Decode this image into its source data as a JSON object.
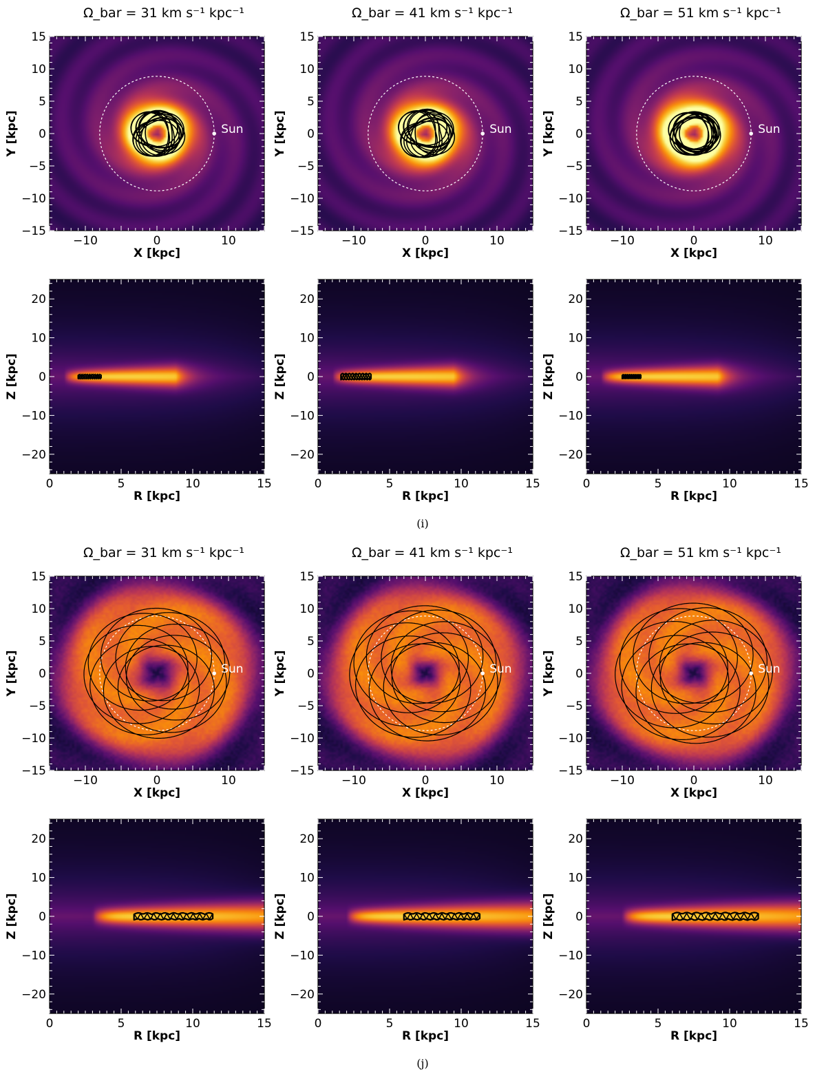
{
  "figure_labels": [
    "(i)",
    "(j)"
  ],
  "colors": {
    "background": "#ffffff",
    "orbit": "#000000",
    "sun_marker": "#ffffff",
    "colormap": "inferno"
  },
  "chart_data": [
    {
      "type": "heatmap",
      "group": "(i)",
      "view": "xy",
      "title": "Ω_bar = 31 km s⁻¹ kpc⁻¹",
      "xlabel": "X [kpc]",
      "ylabel": "Y [kpc]",
      "xlim": [
        -15,
        15
      ],
      "ylim": [
        -15,
        15
      ],
      "xticks": [
        -10,
        0,
        10
      ],
      "yticks": [
        -15,
        -10,
        -5,
        0,
        5,
        10,
        15
      ],
      "sun": {
        "x": 8,
        "y": 0,
        "label": "Sun"
      },
      "solar_circle_radius": 8,
      "density": {
        "kind": "ring",
        "peak_radius": 3.0,
        "width": 1.4,
        "outer_scale": 4.5
      },
      "orbit": {
        "rmin": 2.0,
        "rmax": 3.6,
        "loops": 12
      }
    },
    {
      "type": "heatmap",
      "group": "(i)",
      "view": "xy",
      "title": "Ω_bar = 41 km s⁻¹ kpc⁻¹",
      "xlabel": "X [kpc]",
      "ylabel": "Y [kpc]",
      "xlim": [
        -15,
        15
      ],
      "ylim": [
        -15,
        15
      ],
      "xticks": [
        -10,
        0,
        10
      ],
      "yticks": [
        -15,
        -10,
        -5,
        0,
        5,
        10,
        15
      ],
      "sun": {
        "x": 8,
        "y": 0,
        "label": "Sun"
      },
      "solar_circle_radius": 8,
      "density": {
        "kind": "ring",
        "peak_radius": 3.0,
        "width": 1.5,
        "outer_scale": 4.6
      },
      "orbit": {
        "rmin": 1.8,
        "rmax": 3.8,
        "loops": 12
      }
    },
    {
      "type": "heatmap",
      "group": "(i)",
      "view": "xy",
      "title": "Ω_bar = 51 km s⁻¹ kpc⁻¹",
      "xlabel": "X [kpc]",
      "ylabel": "Y [kpc]",
      "xlim": [
        -15,
        15
      ],
      "ylim": [
        -15,
        15
      ],
      "xticks": [
        -10,
        0,
        10
      ],
      "yticks": [
        -15,
        -10,
        -5,
        0,
        5,
        10,
        15
      ],
      "sun": {
        "x": 8,
        "y": 0,
        "label": "Sun"
      },
      "solar_circle_radius": 8,
      "density": {
        "kind": "ring",
        "peak_radius": 3.2,
        "width": 1.6,
        "outer_scale": 4.6
      },
      "orbit": {
        "rmin": 2.4,
        "rmax": 3.4,
        "loops": 12
      }
    },
    {
      "type": "heatmap",
      "group": "(i)",
      "view": "rz",
      "xlabel": "R [kpc]",
      "ylabel": "Z [kpc]",
      "xlim": [
        0,
        15
      ],
      "ylim": [
        -25,
        25
      ],
      "xticks": [
        0,
        5,
        10,
        15
      ],
      "yticks": [
        -20,
        -10,
        0,
        10,
        20
      ],
      "density": {
        "kind": "disk",
        "r_start": 1.0,
        "r_end": 8.8
      },
      "orbit": {
        "rmin": 2.0,
        "rmax": 3.6,
        "zmax": 0.5
      }
    },
    {
      "type": "heatmap",
      "group": "(i)",
      "view": "rz",
      "xlabel": "R [kpc]",
      "ylabel": "Z [kpc]",
      "xlim": [
        0,
        15
      ],
      "ylim": [
        -25,
        25
      ],
      "xticks": [
        0,
        5,
        10,
        15
      ],
      "yticks": [
        -20,
        -10,
        0,
        10,
        20
      ],
      "density": {
        "kind": "disk",
        "r_start": 1.0,
        "r_end": 9.5
      },
      "orbit": {
        "rmin": 1.6,
        "rmax": 3.7,
        "zmax": 0.8
      }
    },
    {
      "type": "heatmap",
      "group": "(i)",
      "view": "rz",
      "xlabel": "R [kpc]",
      "ylabel": "Z [kpc]",
      "xlim": [
        0,
        15
      ],
      "ylim": [
        -25,
        25
      ],
      "xticks": [
        0,
        5,
        10,
        15
      ],
      "yticks": [
        -20,
        -10,
        0,
        10,
        20
      ],
      "density": {
        "kind": "disk",
        "r_start": 1.0,
        "r_end": 9.2
      },
      "orbit": {
        "rmin": 2.5,
        "rmax": 3.8,
        "zmax": 0.5
      }
    },
    {
      "type": "heatmap",
      "group": "(j)",
      "view": "xy",
      "title": "Ω_bar = 31 km s⁻¹ kpc⁻¹",
      "xlabel": "X [kpc]",
      "ylabel": "Y [kpc]",
      "xlim": [
        -15,
        15
      ],
      "ylim": [
        -15,
        15
      ],
      "xticks": [
        -10,
        0,
        10
      ],
      "yticks": [
        -15,
        -10,
        -5,
        0,
        5,
        10,
        15
      ],
      "sun": {
        "x": 8,
        "y": 0,
        "label": "Sun"
      },
      "solar_circle_radius": 8,
      "density": {
        "kind": "wide",
        "hole_radius": 2.6,
        "outer_radius": 13.5
      },
      "orbit": {
        "center_offset": 3.0,
        "radius": 7.2,
        "loops": 9
      }
    },
    {
      "type": "heatmap",
      "group": "(j)",
      "view": "xy",
      "title": "Ω_bar = 41 km s⁻¹ kpc⁻¹",
      "xlabel": "X [kpc]",
      "ylabel": "Y [kpc]",
      "xlim": [
        -15,
        15
      ],
      "ylim": [
        -15,
        15
      ],
      "xticks": [
        -10,
        0,
        10
      ],
      "yticks": [
        -15,
        -10,
        -5,
        0,
        5,
        10,
        15
      ],
      "sun": {
        "x": 8,
        "y": 0,
        "label": "Sun"
      },
      "solar_circle_radius": 8,
      "density": {
        "kind": "wide",
        "hole_radius": 2.0,
        "outer_radius": 13.5
      },
      "orbit": {
        "center_offset": 3.0,
        "radius": 7.6,
        "loops": 9
      }
    },
    {
      "type": "heatmap",
      "group": "(j)",
      "view": "xy",
      "title": "Ω_bar = 51 km s⁻¹ kpc⁻¹",
      "xlabel": "X [kpc]",
      "ylabel": "Y [kpc]",
      "xlim": [
        -15,
        15
      ],
      "ylim": [
        -15,
        15
      ],
      "xticks": [
        -10,
        0,
        10
      ],
      "yticks": [
        -15,
        -10,
        -5,
        0,
        5,
        10,
        15
      ],
      "sun": {
        "x": 8,
        "y": 0,
        "label": "Sun"
      },
      "solar_circle_radius": 8,
      "density": {
        "kind": "wide",
        "hole_radius": 2.2,
        "outer_radius": 13.5
      },
      "orbit": {
        "center_offset": 3.2,
        "radius": 7.8,
        "loops": 9
      }
    },
    {
      "type": "heatmap",
      "group": "(j)",
      "view": "rz",
      "xlabel": "R [kpc]",
      "ylabel": "Z [kpc]",
      "xlim": [
        0,
        15
      ],
      "ylim": [
        -25,
        25
      ],
      "xticks": [
        0,
        5,
        10,
        15
      ],
      "yticks": [
        -20,
        -10,
        0,
        10,
        20
      ],
      "density": {
        "kind": "disk",
        "r_start": 3.0,
        "r_end": 15
      },
      "orbit": {
        "rmin": 5.9,
        "rmax": 11.4,
        "zmax": 0.9
      }
    },
    {
      "type": "heatmap",
      "group": "(j)",
      "view": "rz",
      "xlabel": "R [kpc]",
      "ylabel": "Z [kpc]",
      "xlim": [
        0,
        15
      ],
      "ylim": [
        -25,
        25
      ],
      "xticks": [
        0,
        5,
        10,
        15
      ],
      "yticks": [
        -20,
        -10,
        0,
        10,
        20
      ],
      "density": {
        "kind": "disk",
        "r_start": 2.0,
        "r_end": 15
      },
      "orbit": {
        "rmin": 6.0,
        "rmax": 11.3,
        "zmax": 0.9
      }
    },
    {
      "type": "heatmap",
      "group": "(j)",
      "view": "rz",
      "xlabel": "R [kpc]",
      "ylabel": "Z [kpc]",
      "xlim": [
        0,
        15
      ],
      "ylim": [
        -25,
        25
      ],
      "xticks": [
        0,
        5,
        10,
        15
      ],
      "yticks": [
        -20,
        -10,
        0,
        10,
        20
      ],
      "density": {
        "kind": "disk",
        "r_start": 2.5,
        "r_end": 15
      },
      "orbit": {
        "rmin": 6.0,
        "rmax": 12.0,
        "zmax": 1.0
      }
    }
  ]
}
